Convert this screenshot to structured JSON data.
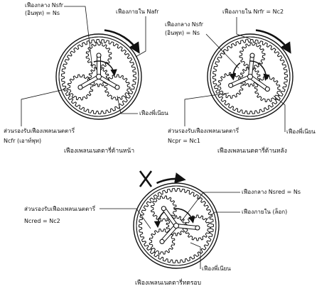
{
  "diagram_front": {
    "sun_gear_label": "เฟืองกลาง Nsfr",
    "sun_gear_sub": "(อินพุท) = Ns",
    "ring_gear_label": "เฟืองภายใน Nafr",
    "carrier_label": "ส่วนรองรับเฟืองเพลนเนตตารี่",
    "carrier_sub": "Ncfr (เอาท์พุท)",
    "planet_label": "เฟืองพี่เนียน",
    "caption": "เฟืองเพลนเนตตารี่ด้านหน้า"
  },
  "diagram_rear": {
    "sun_gear_label": "เฟืองกลาง Nsfr",
    "sun_gear_sub": "(อินพุท) = Ns",
    "ring_gear_label": "เฟืองภายใน Nrfr = Nc2",
    "carrier_label": "ส่วนรองรับเฟืองเพลนเนตตารี่",
    "carrier_sub": "Ncpr = Nc1",
    "planet_label": "เฟืองพี่เนียน",
    "caption": "เฟืองเพลนเนตตารี่ด้านหลัง"
  },
  "diagram_reduction": {
    "sun_gear_label": "เฟืองกลาง Nsred = Ns",
    "ring_gear_label": "เฟืองภายใน (ล็อก)",
    "carrier_label": "ส่วนรองรับเฟืองเพลนเนตตารี่",
    "carrier_sub": "Ncred = Nc2",
    "planet_label": "เฟืองพี่เนียน",
    "caption": "เฟืองเพลนเนตตารี่ทดรอบ"
  },
  "colors": {
    "ink": "#111111",
    "paper": "#ffffff"
  }
}
